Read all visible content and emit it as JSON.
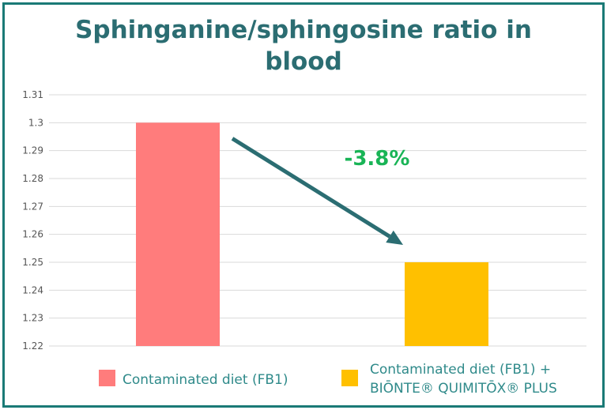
{
  "chart_data": {
    "type": "bar",
    "title_lines": [
      "Sphinganine/sphingosine ratio in",
      "blood"
    ],
    "categories": [
      "Contaminated diet (FB1)",
      "Contaminated diet (FB1) + BIŌNTE® QUIMITŌX® PLUS"
    ],
    "legend": [
      {
        "label": [
          "Contaminated diet (FB1)"
        ],
        "color": "#ff7c7c"
      },
      {
        "label": [
          "Contaminated diet (FB1) +",
          "BIŌNTE® QUIMITŌX® PLUS"
        ],
        "color": "#ffc000"
      }
    ],
    "values": [
      1.3,
      1.25
    ],
    "colors": [
      "#ff7c7c",
      "#ffc000"
    ],
    "ylim": [
      1.22,
      1.31
    ],
    "yticks": [
      "1.22",
      "1.23",
      "1.24",
      "1.25",
      "1.26",
      "1.27",
      "1.28",
      "1.29",
      "1.3",
      "1.31"
    ],
    "annotation": "-3.8%",
    "annotation_color": "#19b456",
    "arrow_color": "#2b6d72",
    "grid": true,
    "legend_position": "bottom"
  }
}
